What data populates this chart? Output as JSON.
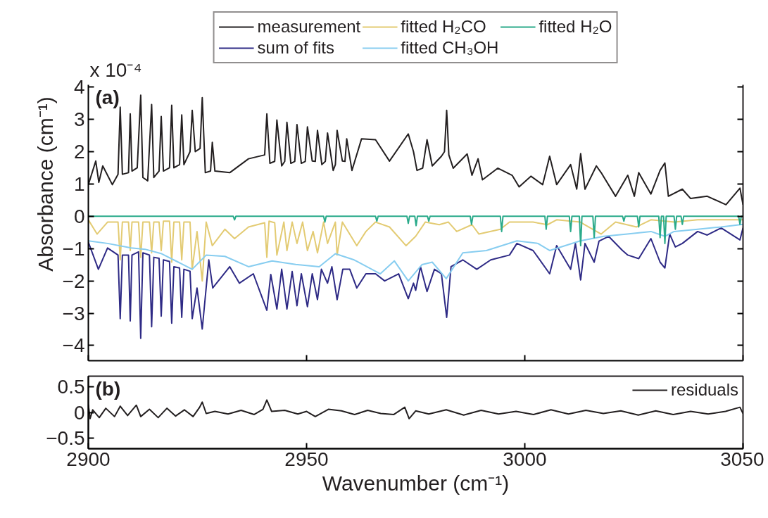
{
  "chart_data": [
    {
      "type": "line",
      "ylabel": "Absorbance (cm⁻¹)",
      "annotations": [
        "(a)",
        "x 10⁻⁴"
      ],
      "xlim": [
        2900,
        3050
      ],
      "xticks": [
        2900,
        2950,
        3000,
        3050
      ],
      "ylim": [
        -4.47,
        4.07
      ],
      "yticks": [
        -4,
        -3,
        -2,
        -1,
        0,
        1,
        2,
        3,
        4
      ],
      "tick_labels": "y",
      "grid": false,
      "legend": "top",
      "line_style": "solid",
      "marker": "none",
      "series": [
        {
          "name": "measurement",
          "color": "#231f20",
          "x": [
            2900,
            2901.7,
            2902.4,
            2903.3,
            2905.5,
            2906.8,
            2907.3,
            2907.8,
            2909.2,
            2909.6,
            2910.0,
            2911.2,
            2912.0,
            2912.5,
            2913.6,
            2914.5,
            2915.0,
            2916.2,
            2916.7,
            2917.2,
            2918.6,
            2919.1,
            2919.6,
            2920.9,
            2921.4,
            2921.9,
            2923.3,
            2923.8,
            2924.5,
            2925.6,
            2926.1,
            2926.8,
            2928.0,
            2928.4,
            2929.0,
            2932.4,
            2936.7,
            2940.4,
            2940.9,
            2941.6,
            2942.7,
            2943.2,
            2944.3,
            2945.0,
            2945.5,
            2946.4,
            2947.3,
            2947.8,
            2948.8,
            2949.7,
            2950.2,
            2951.3,
            2952.0,
            2952.5,
            2953.5,
            2954.3,
            2954.8,
            2956.1,
            2956.6,
            2957.0,
            2958.2,
            2958.8,
            2959.2,
            2960.4,
            2962.6,
            2965.8,
            2969.0,
            2973.3,
            2974.5,
            2975.3,
            2976.6,
            2977.6,
            2978.8,
            2980.9,
            2981.6,
            2982.1,
            2982.6,
            2983.6,
            2986.8,
            2987.9,
            2989.3,
            2990.3,
            2993.8,
            2997.1,
            2998.7,
            3001.4,
            3004.1,
            3005.7,
            3007.3,
            3010.5,
            3011.9,
            3012.8,
            3013.8,
            3016.4,
            3017.5,
            3020.8,
            3023.6,
            3025.1,
            3026.1,
            3028.9,
            3031.0,
            3032.1,
            3032.9,
            3036.1,
            3038.0,
            3041.8,
            3046.1,
            3049.3,
            3050
          ],
          "values": [
            0.98,
            1.71,
            1.05,
            1.56,
            0.98,
            1.3,
            3.38,
            1.3,
            1.35,
            3.17,
            1.4,
            1.5,
            3.75,
            1.2,
            1.1,
            3.46,
            1.2,
            1.4,
            3.09,
            1.4,
            1.5,
            3.44,
            1.5,
            1.6,
            3.14,
            1.6,
            2.0,
            3.28,
            2.0,
            2.1,
            3.67,
            1.35,
            1.4,
            2.29,
            1.4,
            1.35,
            1.78,
            1.9,
            3.17,
            1.64,
            1.7,
            2.98,
            1.56,
            1.7,
            2.91,
            1.64,
            1.7,
            2.84,
            1.64,
            1.7,
            2.77,
            1.71,
            1.7,
            2.66,
            1.6,
            1.7,
            2.58,
            1.42,
            1.6,
            2.66,
            1.71,
            1.7,
            2.4,
            1.42,
            2.4,
            2.37,
            1.71,
            2.55,
            2.0,
            1.42,
            1.49,
            2.37,
            1.56,
            1.86,
            2.0,
            3.28,
            1.9,
            1.49,
            1.93,
            1.27,
            1.78,
            1.13,
            1.49,
            1.27,
            0.91,
            1.24,
            0.98,
            1.86,
            0.98,
            1.6,
            0.84,
            1.94,
            0.84,
            1.56,
            1.35,
            0.62,
            1.27,
            0.62,
            1.35,
            0.69,
            1.42,
            1.65,
            0.62,
            0.84,
            0.55,
            0.62,
            0.36,
            0.87,
            0.36
          ]
        },
        {
          "name": "sum of fits",
          "color": "#2e2a85",
          "x": [
            2900,
            2902.3,
            2904.4,
            2906.8,
            2907.3,
            2907.8,
            2909.2,
            2909.6,
            2910.0,
            2911.5,
            2912.0,
            2912.5,
            2914.0,
            2914.5,
            2915.0,
            2916.2,
            2916.7,
            2917.2,
            2918.6,
            2919.1,
            2919.6,
            2920.9,
            2921.4,
            2921.9,
            2923.3,
            2923.8,
            2924.9,
            2926.1,
            2927.6,
            2928.5,
            2932.4,
            2934.6,
            2937.8,
            2940.9,
            2941.8,
            2943.2,
            2944.3,
            2945.5,
            2946.7,
            2947.8,
            2948.8,
            2950.2,
            2951.3,
            2952.5,
            2953.4,
            2954.8,
            2955.8,
            2957.0,
            2958.3,
            2959.9,
            2961.5,
            2963.6,
            2965.8,
            2967.9,
            2971.1,
            2973.3,
            2974.5,
            2975.0,
            2976.1,
            2977.6,
            2979.3,
            2980.9,
            2982.1,
            2983.1,
            2985.8,
            2989.0,
            2992.2,
            2996.5,
            2998.2,
            3001.9,
            3005.7,
            3007.3,
            3010.5,
            3011.6,
            3012.8,
            3013.8,
            3015.9,
            3017.0,
            3019.2,
            3022.4,
            3023.6,
            3026.1,
            3028.9,
            3031.0,
            3032.1,
            3033.2,
            3034.5,
            3036.1,
            3039.6,
            3041.8,
            3045.0,
            3049.3,
            3050
          ],
          "values": [
            -0.8,
            -1.64,
            -0.98,
            -1.2,
            -3.17,
            -1.2,
            -1.2,
            -3.24,
            -1.2,
            -1.1,
            -3.78,
            -1.13,
            -1.2,
            -3.42,
            -1.27,
            -1.3,
            -3.09,
            -1.35,
            -1.4,
            -3.31,
            -1.56,
            -1.6,
            -3.13,
            -1.64,
            -1.7,
            -3.17,
            -2.22,
            -3.49,
            -1.35,
            -2.22,
            -1.56,
            -2.07,
            -1.78,
            -2.91,
            -1.8,
            -2.87,
            -1.64,
            -2.87,
            -1.71,
            -2.77,
            -1.78,
            -2.8,
            -1.78,
            -2.58,
            -1.64,
            -2.07,
            -1.56,
            -2.58,
            -1.64,
            -1.64,
            -2.22,
            -1.78,
            -1.78,
            -2.0,
            -1.78,
            -2.55,
            -2.07,
            -2.29,
            -1.56,
            -2.33,
            -1.64,
            -1.78,
            -3.13,
            -1.56,
            -1.35,
            -1.64,
            -1.35,
            -1.2,
            -0.84,
            -1.06,
            -1.78,
            -0.91,
            -1.64,
            -0.84,
            -1.97,
            -0.84,
            -1.42,
            -0.77,
            -0.62,
            -1.06,
            -1.2,
            -1.31,
            -0.69,
            -1.42,
            -1.6,
            -0.55,
            -0.95,
            -0.84,
            -0.47,
            -0.58,
            -0.36,
            -0.73,
            -0.36
          ]
        },
        {
          "name": "fitted H₂CO",
          "color": "#e3cb73",
          "x": [
            2900,
            2902.0,
            2904.4,
            2906.8,
            2907.3,
            2907.8,
            2909.2,
            2909.6,
            2910.0,
            2911.5,
            2912.0,
            2912.5,
            2914.0,
            2914.5,
            2915.0,
            2916.2,
            2916.7,
            2917.2,
            2918.6,
            2919.1,
            2919.6,
            2920.9,
            2921.4,
            2921.9,
            2923.3,
            2923.8,
            2924.9,
            2926.1,
            2927.0,
            2928.4,
            2931.3,
            2933.5,
            2936.7,
            2940.4,
            2940.9,
            2941.4,
            2942.7,
            2943.2,
            2944.8,
            2945.5,
            2946.7,
            2947.8,
            2949.1,
            2950.2,
            2951.5,
            2952.5,
            2953.9,
            2954.8,
            2956.6,
            2957.0,
            2958.2,
            2961.5,
            2963.6,
            2965.8,
            2969.0,
            2972.8,
            2975.0,
            2977.2,
            2980.4,
            2982.5,
            2984.4,
            2987.9,
            2989.5,
            2994.4,
            2996.5,
            3001.9,
            3005.2,
            3007.3,
            3012.7,
            3017.5,
            3020.8,
            3025.6,
            3028.9,
            3034.3,
            3039.6,
            3045.0,
            3050
          ],
          "values": [
            -0.11,
            -0.55,
            -0.18,
            -0.18,
            -1.35,
            -0.18,
            -0.18,
            -1.06,
            -0.18,
            -0.18,
            -1.27,
            -0.18,
            -0.18,
            -1.13,
            -0.18,
            -0.18,
            -1.06,
            -0.15,
            -0.15,
            -1.42,
            -0.18,
            -0.18,
            -1.35,
            -0.18,
            -0.18,
            -1.64,
            -0.47,
            -2.0,
            -0.18,
            -0.91,
            -0.4,
            -0.69,
            -0.33,
            -0.2,
            -1.27,
            -0.15,
            -0.2,
            -1.2,
            -0.18,
            -1.06,
            -0.18,
            -0.84,
            -0.18,
            -1.06,
            -0.47,
            -1.13,
            -0.18,
            -0.84,
            -0.18,
            -1.2,
            -0.18,
            -0.91,
            -0.47,
            -0.18,
            -0.33,
            -0.91,
            -0.62,
            -0.18,
            -0.26,
            -0.18,
            -0.47,
            -0.26,
            -0.55,
            -0.4,
            -0.18,
            -0.18,
            -0.26,
            -0.11,
            -0.18,
            -0.55,
            -0.18,
            -0.33,
            -0.11,
            -0.18,
            -0.11,
            -0.11,
            -0.11
          ]
        },
        {
          "name": "fitted CH₃OH",
          "color": "#87cdf0",
          "x": [
            2900,
            2904.4,
            2909.8,
            2913.0,
            2916.8,
            2920.6,
            2923.8,
            2927.0,
            2931.3,
            2936.7,
            2942.1,
            2947.5,
            2952.9,
            2956.6,
            2960.9,
            2966.9,
            2970.1,
            2973.3,
            2976.5,
            2976.6,
            2978.8,
            2982.0,
            2985.8,
            2991.2,
            2998.2,
            3003.0,
            3005.7,
            3012.7,
            3018.1,
            3023.5,
            3028.9,
            3032.1,
            3034.2,
            3039.6,
            3045.0,
            3050
          ],
          "values": [
            -0.76,
            -0.84,
            -0.98,
            -1.02,
            -1.16,
            -1.42,
            -1.64,
            -1.2,
            -1.24,
            -1.56,
            -1.38,
            -1.49,
            -1.56,
            -1.16,
            -1.35,
            -1.78,
            -1.38,
            -2.0,
            -1.49,
            -1.49,
            -1.42,
            -1.93,
            -1.13,
            -1.06,
            -0.76,
            -0.84,
            -1.06,
            -0.76,
            -0.62,
            -0.55,
            -0.47,
            -0.62,
            -0.47,
            -0.4,
            -0.33,
            -0.25
          ]
        },
        {
          "name": "fitted H₂O",
          "color": "#2aaa8a",
          "x": [
            2900,
            2933.2,
            2933.5,
            2933.8,
            2953.9,
            2954.2,
            2954.5,
            2965.8,
            2966.1,
            2966.4,
            2973.0,
            2973.3,
            2973.6,
            2974.8,
            2975.1,
            2975.4,
            2977.7,
            2978.0,
            2978.3,
            2987.5,
            2987.8,
            2988.1,
            2994.4,
            2994.7,
            2995.0,
            3004.6,
            3004.9,
            3005.2,
            3010.2,
            3010.5,
            3010.8,
            3012.5,
            3012.8,
            3013.1,
            3015.6,
            3015.9,
            3016.2,
            3022.4,
            3022.7,
            3023.0,
            3025.8,
            3026.1,
            3026.4,
            3030.7,
            3031.0,
            3031.3,
            3031.8,
            3032.1,
            3032.4,
            3034.2,
            3034.5,
            3034.8,
            3035.8,
            3036.1,
            3036.4,
            3049.0,
            3049.3,
            3049.6,
            3050
          ],
          "values": [
            0,
            0,
            -0.11,
            0,
            0,
            -0.18,
            0,
            0,
            -0.15,
            0,
            0,
            -0.22,
            0,
            0,
            -0.29,
            0,
            0,
            -0.15,
            0,
            0,
            -0.25,
            0,
            0,
            -0.47,
            0,
            0,
            -0.4,
            0,
            0,
            -0.47,
            0,
            0,
            -0.91,
            0,
            0,
            -0.66,
            0,
            0,
            -0.15,
            0,
            0,
            -0.33,
            0,
            0,
            -0.66,
            0,
            0,
            -0.84,
            0,
            0,
            -0.4,
            0,
            0,
            -0.25,
            0,
            0,
            -0.25,
            0,
            0
          ]
        }
      ]
    },
    {
      "type": "line",
      "xlabel": "Wavenumber (cm⁻¹)",
      "annotations": [
        "(b)"
      ],
      "xlim": [
        2900,
        3050
      ],
      "xticks": [
        2900,
        2950,
        3000,
        3050
      ],
      "ylim": [
        -0.7,
        0.7
      ],
      "yticks": [
        -0.5,
        0,
        0.5
      ],
      "grid": false,
      "legend": "top right",
      "line_style": "solid",
      "marker": "none",
      "series": [
        {
          "name": "residuals",
          "color": "#231f20",
          "x": [
            2900,
            2900.4,
            2901.0,
            2902.5,
            2904.0,
            2906.0,
            2907.3,
            2909.0,
            2911.0,
            2912.0,
            2914.0,
            2916.0,
            2918.0,
            2920.0,
            2922.0,
            2924.0,
            2925.5,
            2926.1,
            2927.0,
            2929.0,
            2932.0,
            2935.0,
            2938.0,
            2940.0,
            2940.9,
            2942.0,
            2945.0,
            2948.0,
            2950.0,
            2952.0,
            2955.0,
            2958.0,
            2961.0,
            2964.0,
            2967.0,
            2970.0,
            2972.5,
            2973.5,
            2975.0,
            2978.0,
            2982.0,
            2986.0,
            2990.0,
            2994.0,
            2998.0,
            3002.0,
            3006.0,
            3010.0,
            3014.0,
            3018.0,
            3022.0,
            3026.0,
            3030.0,
            3034.0,
            3038.0,
            3042.0,
            3046.0,
            3049.3,
            3050
          ],
          "values": [
            0.15,
            -0.12,
            0.05,
            -0.1,
            0.08,
            -0.08,
            0.12,
            -0.06,
            0.14,
            -0.08,
            0.06,
            -0.1,
            0.08,
            -0.07,
            0.05,
            -0.08,
            0.1,
            0.2,
            -0.02,
            0.02,
            -0.03,
            0.04,
            -0.04,
            0.06,
            0.24,
            0.02,
            0.04,
            -0.03,
            0.02,
            -0.08,
            0.06,
            0.03,
            -0.04,
            0.04,
            -0.02,
            -0.04,
            0.1,
            -0.12,
            0.03,
            -0.03,
            0.05,
            -0.05,
            0.04,
            -0.03,
            0.02,
            -0.04,
            0.05,
            -0.03,
            0.04,
            -0.02,
            0.03,
            -0.05,
            0.03,
            -0.04,
            0.02,
            -0.03,
            0.02,
            0.1,
            -0.02
          ]
        }
      ]
    }
  ]
}
